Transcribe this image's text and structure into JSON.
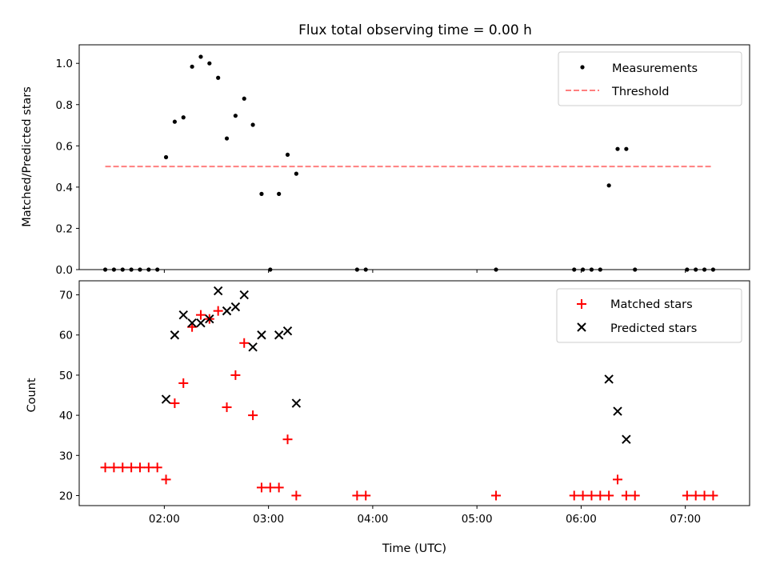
{
  "chart_data": [
    {
      "type": "scatter",
      "title": "Flux total observing time = 0.00 h",
      "xlabel": "",
      "ylabel": "Matched/Predicted stars",
      "xlim": [
        "01:11",
        "07:37"
      ],
      "ylim": [
        0,
        1.09
      ],
      "yticks": [
        0.0,
        0.2,
        0.4,
        0.6,
        0.8,
        1.0
      ],
      "ytick_labels": [
        "0.0",
        "0.2",
        "0.4",
        "0.6",
        "0.8",
        "1.0"
      ],
      "grid": false,
      "legend": "top-right",
      "series": [
        {
          "name": "Measurements",
          "marker": "dot",
          "color": "#000000",
          "points": [
            [
              "01:26",
              0.0
            ],
            [
              "01:31",
              0.0
            ],
            [
              "01:36",
              0.0
            ],
            [
              "01:41",
              0.0
            ],
            [
              "01:46",
              0.0
            ],
            [
              "01:51",
              0.0
            ],
            [
              "01:56",
              0.0
            ],
            [
              "02:01",
              0.545
            ],
            [
              "02:06",
              0.717
            ],
            [
              "02:11",
              0.738
            ],
            [
              "02:16",
              0.984
            ],
            [
              "02:21",
              1.032
            ],
            [
              "02:26",
              1.0
            ],
            [
              "02:31",
              0.93
            ],
            [
              "02:36",
              0.636
            ],
            [
              "02:41",
              0.746
            ],
            [
              "02:46",
              0.829
            ],
            [
              "02:51",
              0.702
            ],
            [
              "02:56",
              0.367
            ],
            [
              "03:01",
              0.0
            ],
            [
              "03:06",
              0.367
            ],
            [
              "03:11",
              0.557
            ],
            [
              "03:16",
              0.465
            ],
            [
              "03:51",
              0.0
            ],
            [
              "03:56",
              0.0
            ],
            [
              "05:11",
              0.0
            ],
            [
              "05:56",
              0.0
            ],
            [
              "06:01",
              0.0
            ],
            [
              "06:06",
              0.0
            ],
            [
              "06:11",
              0.0
            ],
            [
              "06:16",
              0.408
            ],
            [
              "06:21",
              0.585
            ],
            [
              "06:26",
              0.585
            ],
            [
              "06:31",
              0.0
            ],
            [
              "07:01",
              0.0
            ],
            [
              "07:06",
              0.0
            ],
            [
              "07:11",
              0.0
            ],
            [
              "07:16",
              0.0
            ]
          ]
        },
        {
          "name": "Threshold",
          "type": "line",
          "style": "dashed",
          "color": "#ff7f7f",
          "points": [
            [
              "01:26",
              0.5
            ],
            [
              "07:16",
              0.5
            ]
          ]
        }
      ]
    },
    {
      "type": "scatter",
      "title": "",
      "xlabel": "Time (UTC)",
      "ylabel": "Count",
      "xlim": [
        "01:11",
        "07:37"
      ],
      "ylim": [
        17.5,
        73.5
      ],
      "xticks": [
        "02:00",
        "03:00",
        "04:00",
        "05:00",
        "06:00",
        "07:00"
      ],
      "yticks": [
        20,
        30,
        40,
        50,
        60,
        70
      ],
      "ytick_labels": [
        "20",
        "30",
        "40",
        "50",
        "60",
        "70"
      ],
      "grid": false,
      "legend": "top-right",
      "series": [
        {
          "name": "Matched stars",
          "marker": "plus",
          "color": "#ff0000",
          "points": [
            [
              "01:26",
              27
            ],
            [
              "01:31",
              27
            ],
            [
              "01:36",
              27
            ],
            [
              "01:41",
              27
            ],
            [
              "01:46",
              27
            ],
            [
              "01:51",
              27
            ],
            [
              "01:56",
              27
            ],
            [
              "02:01",
              24
            ],
            [
              "02:06",
              43
            ],
            [
              "02:11",
              48
            ],
            [
              "02:16",
              62
            ],
            [
              "02:21",
              65
            ],
            [
              "02:26",
              64
            ],
            [
              "02:31",
              66
            ],
            [
              "02:36",
              42
            ],
            [
              "02:41",
              50
            ],
            [
              "02:46",
              58
            ],
            [
              "02:51",
              40
            ],
            [
              "02:56",
              22
            ],
            [
              "03:01",
              22
            ],
            [
              "03:06",
              22
            ],
            [
              "03:11",
              34
            ],
            [
              "03:16",
              20
            ],
            [
              "03:51",
              20
            ],
            [
              "03:56",
              20
            ],
            [
              "05:11",
              20
            ],
            [
              "05:56",
              20
            ],
            [
              "06:01",
              20
            ],
            [
              "06:06",
              20
            ],
            [
              "06:11",
              20
            ],
            [
              "06:16",
              20
            ],
            [
              "06:21",
              24
            ],
            [
              "06:26",
              20
            ],
            [
              "06:31",
              20
            ],
            [
              "07:01",
              20
            ],
            [
              "07:06",
              20
            ],
            [
              "07:11",
              20
            ],
            [
              "07:16",
              20
            ]
          ]
        },
        {
          "name": "Predicted stars",
          "marker": "x",
          "color": "#000000",
          "points": [
            [
              "02:01",
              44
            ],
            [
              "02:06",
              60
            ],
            [
              "02:11",
              65
            ],
            [
              "02:16",
              63
            ],
            [
              "02:21",
              63
            ],
            [
              "02:26",
              64
            ],
            [
              "02:31",
              71
            ],
            [
              "02:36",
              66
            ],
            [
              "02:41",
              67
            ],
            [
              "02:46",
              70
            ],
            [
              "02:51",
              57
            ],
            [
              "02:56",
              60
            ],
            [
              "03:06",
              60
            ],
            [
              "03:11",
              61
            ],
            [
              "03:16",
              43
            ],
            [
              "06:16",
              49
            ],
            [
              "06:21",
              41
            ],
            [
              "06:26",
              34
            ]
          ]
        }
      ]
    }
  ]
}
